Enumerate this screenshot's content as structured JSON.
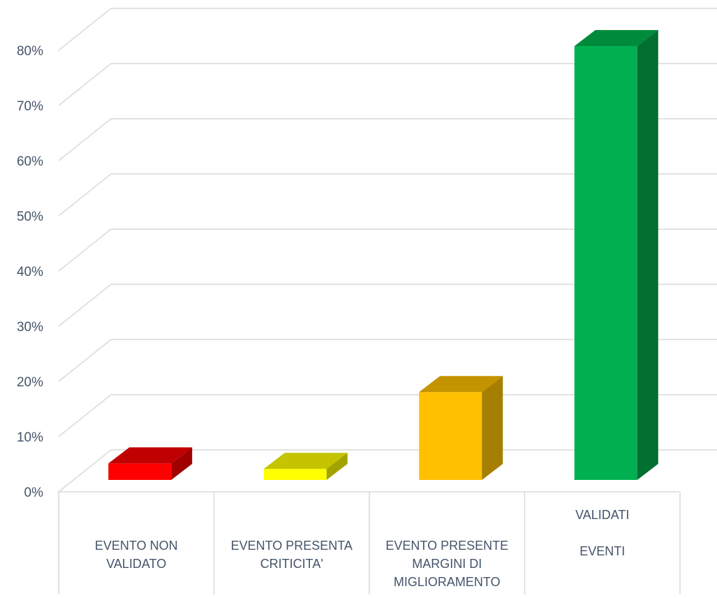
{
  "chart_data": {
    "type": "bar",
    "style": "3d-column",
    "categories": [
      [
        "EVENTO NON",
        "VALIDATO"
      ],
      [
        "EVENTO PRESENTA",
        "CRITICITA'"
      ],
      [
        "EVENTO PRESENTE",
        "MARGINI DI",
        "MIGLIORAMENTO"
      ],
      [
        "VALIDATI",
        "",
        "EVENTI"
      ]
    ],
    "values": [
      3,
      2,
      16,
      79
    ],
    "value_unit": "%",
    "ylim": [
      0,
      80
    ],
    "ytick_step": 10,
    "grid": true,
    "legend": "none",
    "title": "",
    "xlabel": "",
    "ylabel": "",
    "colors": {
      "front": [
        "#ff0000",
        "#ffff00",
        "#ffc000",
        "#00b050"
      ],
      "top": [
        "#c00000",
        "#c4c400",
        "#c49300",
        "#008a3c"
      ],
      "side": [
        "#a00000",
        "#a3a300",
        "#a77f00",
        "#006f2f"
      ],
      "grid": "#d9d9d9",
      "axis_text": "#44546a"
    }
  }
}
